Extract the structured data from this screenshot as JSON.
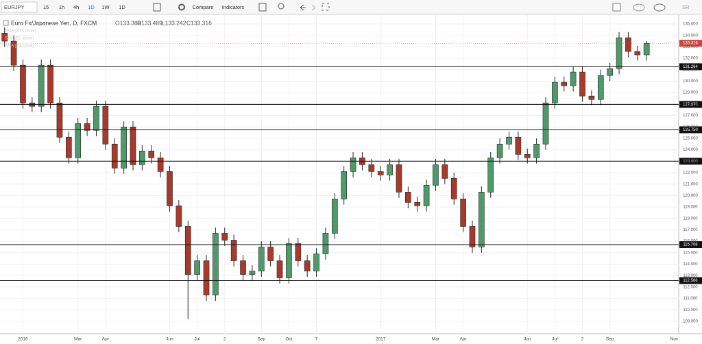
{
  "toolbar": {
    "symbol": "EURJPY",
    "intervals": [
      "15",
      "1h",
      "4h",
      "1D",
      "1W",
      "1D"
    ],
    "buttons": [
      "Compare",
      "Indicators"
    ],
    "account": "SR"
  },
  "chart_data": {
    "type": "candlestick",
    "title": "Euro Fx/Japanese Yen, D, FXCM",
    "ohlc_labels": [
      "O133.389",
      "H133.489",
      "L133.242",
      "C133.316"
    ],
    "indicators": [
      "SMA (200, close)",
      "SMA (50, close)",
      "SMA (20, close)"
    ],
    "categories": [
      null,
      null,
      "2016",
      null,
      null,
      null,
      null,
      null,
      "Mar",
      null,
      null,
      "Apr",
      null,
      null,
      null,
      null,
      null,
      null,
      "Jun",
      null,
      null,
      "Jul",
      null,
      null,
      "2",
      null,
      null,
      null,
      "Sep",
      null,
      null,
      "Oct",
      null,
      null,
      "7",
      null,
      null,
      null,
      null,
      null,
      null,
      "2017",
      null,
      null,
      null,
      null,
      null,
      "Mar",
      null,
      null,
      "Apr",
      null,
      null,
      null,
      null,
      null,
      null,
      "Jun",
      null,
      null,
      "Jul",
      null,
      null,
      "2",
      null,
      null,
      "Sep",
      null,
      null,
      null,
      null,
      null,
      null,
      "Nov"
    ],
    "open": [
      134.2,
      133.5,
      131.4,
      128.1,
      127.8,
      131.4,
      128.1,
      125.1,
      123.3,
      126.3,
      125.7,
      127.8,
      124.5,
      122.4,
      126.0,
      122.7,
      123.9,
      123.3,
      122.1,
      119.1,
      117.3,
      113.1,
      114.3,
      111.3,
      116.7,
      116.1,
      114.3,
      113.1,
      113.4,
      115.5,
      114.3,
      112.8,
      115.8,
      114.3,
      113.4,
      114.9,
      116.7,
      119.7,
      122.1,
      123.3,
      122.7,
      122.1,
      121.8,
      122.7,
      120.3,
      119.4,
      119.1,
      120.9,
      122.7,
      121.5,
      119.7,
      117.3,
      115.5,
      120.3,
      123.3,
      124.5,
      125.1,
      123.6,
      123.3,
      124.5,
      128.1,
      129.9,
      129.6,
      130.8,
      128.7,
      128.4,
      130.5,
      131.1,
      133.8,
      132.6,
      132.3,
      null,
      null,
      null
    ],
    "high": [
      134.7,
      134.0,
      131.9,
      128.6,
      131.9,
      131.9,
      128.6,
      125.6,
      126.8,
      126.8,
      128.3,
      128.3,
      125.0,
      126.5,
      126.5,
      124.4,
      124.4,
      123.8,
      122.6,
      119.6,
      117.8,
      114.8,
      114.8,
      117.2,
      117.2,
      116.6,
      114.8,
      113.9,
      116.0,
      116.0,
      114.8,
      116.3,
      116.3,
      114.8,
      115.4,
      117.2,
      120.2,
      122.6,
      123.8,
      123.8,
      123.2,
      122.6,
      123.2,
      123.2,
      120.8,
      119.9,
      121.4,
      123.2,
      123.2,
      122.0,
      120.2,
      117.8,
      120.8,
      123.8,
      125.0,
      125.6,
      125.6,
      124.1,
      125.0,
      128.6,
      130.4,
      130.4,
      131.3,
      131.3,
      129.2,
      131.0,
      131.6,
      134.3,
      134.3,
      133.1,
      133.5,
      null,
      null,
      null
    ],
    "low": [
      133.0,
      130.9,
      127.6,
      127.3,
      127.3,
      127.6,
      124.6,
      122.8,
      122.8,
      125.2,
      125.2,
      124.0,
      121.9,
      121.9,
      122.2,
      122.2,
      122.8,
      121.6,
      118.6,
      116.8,
      109.2,
      112.6,
      110.8,
      110.8,
      115.6,
      113.8,
      112.6,
      112.6,
      112.9,
      113.8,
      112.3,
      112.3,
      113.8,
      112.9,
      112.9,
      114.4,
      116.2,
      119.2,
      121.6,
      122.2,
      121.6,
      121.3,
      121.3,
      119.8,
      118.9,
      118.6,
      118.6,
      120.4,
      121.0,
      119.2,
      116.8,
      115.0,
      115.0,
      119.8,
      122.8,
      124.0,
      123.1,
      122.8,
      122.8,
      124.0,
      127.6,
      129.1,
      129.1,
      128.2,
      127.9,
      127.9,
      130.0,
      130.6,
      132.1,
      131.8,
      131.8,
      null,
      null,
      null
    ],
    "close": [
      133.5,
      131.4,
      128.1,
      127.8,
      131.4,
      128.1,
      125.1,
      123.3,
      126.3,
      125.7,
      127.8,
      124.5,
      122.4,
      126.0,
      122.7,
      123.9,
      123.3,
      122.1,
      119.1,
      117.3,
      113.1,
      114.3,
      111.3,
      116.7,
      116.1,
      114.3,
      113.1,
      113.4,
      115.5,
      114.3,
      112.8,
      115.8,
      114.3,
      113.4,
      114.9,
      116.7,
      119.7,
      122.1,
      123.3,
      122.7,
      122.1,
      121.8,
      122.7,
      120.3,
      119.4,
      119.1,
      120.9,
      122.7,
      121.5,
      119.7,
      117.3,
      115.5,
      120.3,
      123.3,
      124.5,
      125.1,
      123.6,
      123.3,
      124.5,
      128.1,
      129.9,
      129.6,
      130.8,
      128.7,
      128.4,
      130.5,
      131.1,
      133.8,
      132.6,
      132.3,
      133.3,
      null,
      null,
      null
    ],
    "up_color": "#4f9a6a",
    "down_color": "#a83a2c",
    "ylim": [
      107.92,
      135.78
    ],
    "yticks": [
      {
        "value": 109,
        "label": "109.000"
      },
      {
        "value": 110,
        "label": "110.000"
      },
      {
        "value": 111,
        "label": "111.000"
      },
      {
        "value": 112,
        "label": "112.000"
      },
      {
        "value": 113,
        "label": "113.000"
      },
      {
        "value": 114,
        "label": "114.000"
      },
      {
        "value": 115,
        "label": "115.000"
      },
      {
        "value": 116,
        "label": "116.000"
      },
      {
        "value": 117,
        "label": "117.000"
      },
      {
        "value": 118,
        "label": "118.000"
      },
      {
        "value": 119,
        "label": "119.000"
      },
      {
        "value": 120,
        "label": "120.000"
      },
      {
        "value": 121,
        "label": "121.000"
      },
      {
        "value": 122,
        "label": "122.000"
      },
      {
        "value": 123,
        "label": "123.000"
      },
      {
        "value": 124,
        "label": "124.000"
      },
      {
        "value": 125,
        "label": "125.000"
      },
      {
        "value": 126,
        "label": "126.000"
      },
      {
        "value": 127,
        "label": "127.000"
      },
      {
        "value": 128,
        "label": "128.000"
      },
      {
        "value": 129,
        "label": "129.000"
      },
      {
        "value": 130,
        "label": "130.000"
      },
      {
        "value": 131,
        "label": "131.000"
      },
      {
        "value": 132,
        "label": "132.000"
      },
      {
        "value": 133,
        "label": "133.000"
      },
      {
        "value": 134,
        "label": "134.000"
      },
      {
        "value": 135,
        "label": "135.000"
      }
    ],
    "levels": [
      131.264,
      {
        "value": 127.97,
        "label": "127.970"
      },
      {
        "value": 125.75,
        "label": "125.750"
      },
      {
        "value": 123,
        "label": "123.000"
      },
      115.708,
      112.566
    ],
    "last_price": {
      "value": 133.316,
      "label": "133.316"
    },
    "last_price_color": "#d0453a",
    "grid": true
  }
}
